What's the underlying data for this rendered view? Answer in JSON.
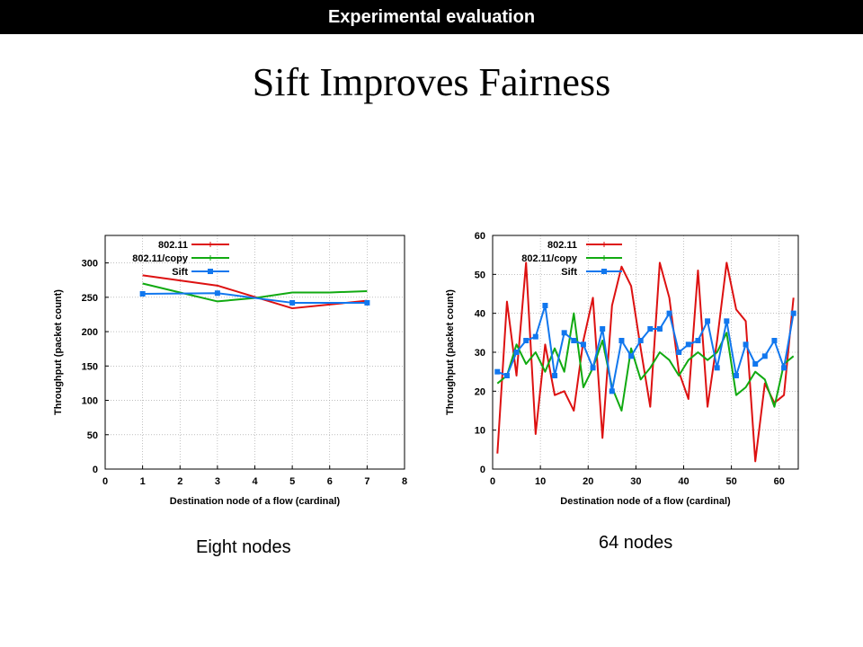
{
  "header": {
    "section_label": "Experimental evaluation"
  },
  "slide": {
    "title": "Sift Improves Fairness"
  },
  "captions": {
    "left": "Eight nodes",
    "right": "64 nodes"
  },
  "colors": {
    "red": "#dd1111",
    "green": "#11aa11",
    "blue": "#1177ee"
  },
  "chart_data": [
    {
      "type": "line",
      "xlabel": "Destination node of a flow (cardinal)",
      "ylabel": "Throughput (packet count)",
      "xlim": [
        0,
        8
      ],
      "ylim": [
        0,
        340
      ],
      "xticks": [
        0,
        1,
        2,
        3,
        4,
        5,
        6,
        7,
        8
      ],
      "yticks": [
        0,
        50,
        100,
        150,
        200,
        250,
        300
      ],
      "grid": true,
      "legend_position": "top-left",
      "series": [
        {
          "name": "802.11",
          "color": "red",
          "marker": "none",
          "x": [
            1,
            3,
            5,
            7
          ],
          "y": [
            282,
            267,
            234,
            245
          ]
        },
        {
          "name": "802.11/copy",
          "color": "green",
          "marker": "none",
          "x": [
            1,
            2,
            3,
            4,
            5,
            6,
            7
          ],
          "y": [
            270,
            257,
            244,
            249,
            257,
            257,
            259
          ]
        },
        {
          "name": "Sift",
          "color": "blue",
          "marker": "square",
          "x": [
            1,
            3,
            5,
            7
          ],
          "y": [
            255,
            256,
            242,
            242
          ]
        }
      ]
    },
    {
      "type": "line",
      "xlabel": "Destination node of a flow (cardinal)",
      "ylabel": "Throughput (packet count)",
      "xlim": [
        0,
        64
      ],
      "ylim": [
        0,
        60
      ],
      "xticks": [
        0,
        10,
        20,
        30,
        40,
        50,
        60
      ],
      "yticks": [
        0,
        10,
        20,
        30,
        40,
        50,
        60
      ],
      "grid": true,
      "legend_position": "top-left",
      "series": [
        {
          "name": "802.11",
          "color": "red",
          "marker": "none",
          "x": [
            1,
            3,
            5,
            7,
            9,
            11,
            13,
            15,
            17,
            19,
            21,
            23,
            25,
            27,
            29,
            31,
            33,
            35,
            37,
            39,
            41,
            43,
            45,
            47,
            49,
            51,
            53,
            55,
            57,
            59,
            61,
            63
          ],
          "y": [
            4,
            43,
            24,
            53,
            9,
            32,
            19,
            20,
            15,
            33,
            44,
            8,
            42,
            52,
            47,
            31,
            16,
            53,
            44,
            25,
            18,
            51,
            16,
            33,
            53,
            41,
            38,
            2,
            22,
            17,
            19,
            44
          ]
        },
        {
          "name": "802.11/copy",
          "color": "green",
          "marker": "none",
          "x": [
            1,
            3,
            5,
            7,
            9,
            11,
            13,
            15,
            17,
            19,
            21,
            23,
            25,
            27,
            29,
            31,
            33,
            35,
            37,
            39,
            41,
            43,
            45,
            47,
            49,
            51,
            53,
            55,
            57,
            59,
            61,
            63
          ],
          "y": [
            22,
            24,
            32,
            27,
            30,
            25,
            31,
            25,
            40,
            21,
            26,
            33,
            21,
            15,
            31,
            23,
            26,
            30,
            28,
            24,
            28,
            30,
            28,
            30,
            35,
            19,
            21,
            25,
            23,
            16,
            27,
            29
          ]
        },
        {
          "name": "Sift",
          "color": "blue",
          "marker": "square",
          "x": [
            1,
            3,
            5,
            7,
            9,
            11,
            13,
            15,
            17,
            19,
            21,
            23,
            25,
            27,
            29,
            31,
            33,
            35,
            37,
            39,
            41,
            43,
            45,
            47,
            49,
            51,
            53,
            55,
            57,
            59,
            61,
            63
          ],
          "y": [
            25,
            24,
            30,
            33,
            34,
            42,
            24,
            35,
            33,
            32,
            26,
            36,
            20,
            33,
            29,
            33,
            36,
            36,
            40,
            30,
            32,
            33,
            38,
            26,
            38,
            24,
            32,
            27,
            29,
            33,
            26,
            40
          ]
        }
      ]
    }
  ]
}
